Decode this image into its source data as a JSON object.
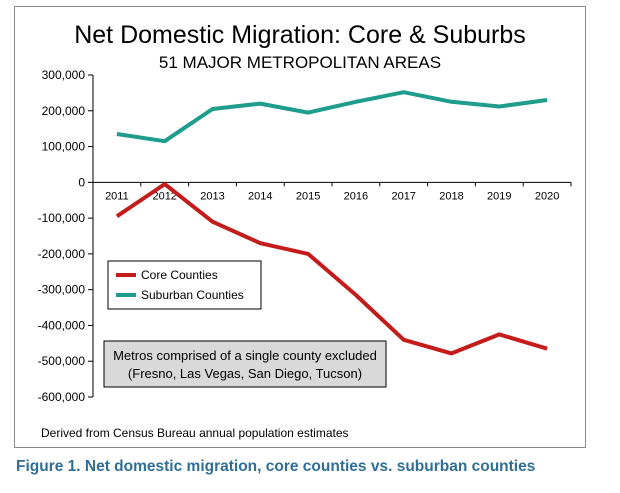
{
  "chart_data": {
    "type": "line",
    "title": "Net Domestic Migration: Core & Suburbs",
    "subtitle": "51 MAJOR METROPOLITAN AREAS",
    "x": [
      "2011",
      "2012",
      "2013",
      "2014",
      "2015",
      "2016",
      "2017",
      "2018",
      "2019",
      "2020"
    ],
    "ylim": [
      -600000,
      300000
    ],
    "yticks": [
      "300,000",
      "200,000",
      "100,000",
      "0",
      "-100,000",
      "-200,000",
      "-300,000",
      "-400,000",
      "-500,000",
      "-600,000"
    ],
    "ytick_values": [
      300000,
      200000,
      100000,
      0,
      -100000,
      -200000,
      -300000,
      -400000,
      -500000,
      -600000
    ],
    "grid": false,
    "legend_position": "lower-left",
    "series": [
      {
        "name": "Core Counties",
        "color": "#c41b1b",
        "values": [
          -95000,
          -5000,
          -110000,
          -170000,
          -200000,
          -315000,
          -440000,
          -478000,
          -425000,
          -465000
        ]
      },
      {
        "name": "Suburban Counties",
        "color": "#1e9c8c",
        "values": [
          135000,
          115000,
          205000,
          220000,
          195000,
          225000,
          252000,
          225000,
          212000,
          230000
        ]
      }
    ],
    "annotation_lines": [
      "Metros  comprised of a single county excluded",
      "(Fresno, Las Vegas, San Diego, Tucson)"
    ],
    "source_note": "Derived from Census Bureau annual population estimates"
  },
  "caption": "Figure 1. Net domestic migration, core counties vs. suburban counties"
}
